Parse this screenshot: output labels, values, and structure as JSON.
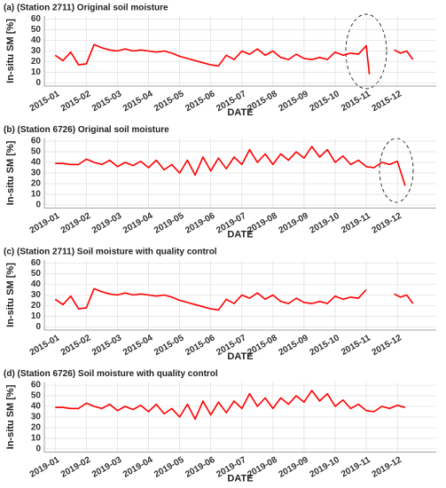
{
  "chart_data": [
    {
      "type": "line",
      "title": "(a) (Station 2711) Original soil moisture",
      "xlabel": "DATE",
      "ylabel": "In-situ SM [%]",
      "x": [
        0,
        0.25,
        0.5,
        0.75,
        1,
        1.25,
        1.5,
        1.75,
        2,
        2.25,
        2.5,
        2.75,
        3,
        3.25,
        3.5,
        3.75,
        4,
        4.25,
        4.5,
        4.75,
        5,
        5.25,
        5.5,
        5.75,
        6,
        6.25,
        6.5,
        6.75,
        7,
        7.25,
        7.5,
        7.75,
        8,
        8.25,
        8.5,
        8.75,
        9,
        9.25,
        9.5,
        9.75,
        10,
        10.1,
        10.5,
        10.9,
        11.1,
        11.3,
        11.5
      ],
      "color": "#ff0000",
      "values": [
        26,
        21,
        29,
        17,
        18,
        36,
        33,
        31,
        30,
        32,
        30,
        31,
        30,
        29,
        30,
        28,
        25,
        23,
        21,
        19,
        17,
        16,
        26,
        22,
        30,
        27,
        32,
        26,
        30,
        24,
        22,
        27,
        23,
        22,
        24,
        22,
        29,
        26,
        28,
        27,
        35,
        8,
        null,
        31,
        28,
        30,
        22
      ],
      "xlim": [
        -0.35,
        12.25
      ],
      "xticks": [
        {
          "value": 0,
          "label": "2015-01"
        },
        {
          "value": 1,
          "label": "2015-02"
        },
        {
          "value": 2,
          "label": "2015-03"
        },
        {
          "value": 3,
          "label": "2015-04"
        },
        {
          "value": 4,
          "label": "2015-05"
        },
        {
          "value": 5,
          "label": "2015-06"
        },
        {
          "value": 6,
          "label": "2015-07"
        },
        {
          "value": 7,
          "label": "2015-08"
        },
        {
          "value": 8,
          "label": "2015-09"
        },
        {
          "value": 9,
          "label": "2015-10"
        },
        {
          "value": 10,
          "label": "2015-11"
        },
        {
          "value": 11,
          "label": "2015-12"
        }
      ],
      "ylim": [
        -3,
        63
      ],
      "yticks": [
        0,
        10,
        20,
        30,
        40,
        50,
        60
      ],
      "grid": true
    },
    {
      "type": "line",
      "title": "(b) (Station 6726) Original soil moisture",
      "xlabel": "DATE",
      "ylabel": "In-situ SM [%]",
      "x": [
        0,
        0.25,
        0.5,
        0.75,
        1,
        1.25,
        1.5,
        1.75,
        2,
        2.25,
        2.5,
        2.75,
        3,
        3.25,
        3.5,
        3.75,
        4,
        4.25,
        4.5,
        4.75,
        5,
        5.25,
        5.5,
        5.75,
        6,
        6.25,
        6.5,
        6.75,
        7,
        7.25,
        7.5,
        7.75,
        8,
        8.25,
        8.5,
        8.75,
        9,
        9.25,
        9.5,
        9.75,
        10,
        10.25,
        10.5,
        10.75,
        11,
        11.25
      ],
      "color": "#ff0000",
      "values": [
        39,
        39,
        38,
        38,
        43,
        40,
        38,
        42,
        36,
        40,
        37,
        41,
        35,
        42,
        33,
        38,
        30,
        42,
        28,
        45,
        32,
        44,
        34,
        45,
        38,
        52,
        40,
        48,
        38,
        48,
        42,
        50,
        44,
        55,
        45,
        52,
        40,
        46,
        38,
        42,
        36,
        35,
        40,
        38,
        41,
        18
      ],
      "xlim": [
        -0.35,
        12.25
      ],
      "xticks": [
        {
          "value": 0,
          "label": "2019-01"
        },
        {
          "value": 1,
          "label": "2019-02"
        },
        {
          "value": 2,
          "label": "2019-03"
        },
        {
          "value": 3,
          "label": "2019-04"
        },
        {
          "value": 4,
          "label": "2019-05"
        },
        {
          "value": 5,
          "label": "2019-06"
        },
        {
          "value": 6,
          "label": "2019-07"
        },
        {
          "value": 7,
          "label": "2019-08"
        },
        {
          "value": 8,
          "label": "2019-09"
        },
        {
          "value": 9,
          "label": "2019-10"
        },
        {
          "value": 10,
          "label": "2019-11"
        },
        {
          "value": 11,
          "label": "2019-12"
        }
      ],
      "ylim": [
        -3,
        63
      ],
      "yticks": [
        0,
        10,
        20,
        30,
        40,
        50,
        60
      ],
      "grid": true
    },
    {
      "type": "line",
      "title": "(c) (Station 2711) Soil moisture with quality control",
      "xlabel": "DATE",
      "ylabel": "In-situ SM [%]",
      "x": [
        0,
        0.25,
        0.5,
        0.75,
        1,
        1.25,
        1.5,
        1.75,
        2,
        2.25,
        2.5,
        2.75,
        3,
        3.25,
        3.5,
        3.75,
        4,
        4.25,
        4.5,
        4.75,
        5,
        5.25,
        5.5,
        5.75,
        6,
        6.25,
        6.5,
        6.75,
        7,
        7.25,
        7.5,
        7.75,
        8,
        8.25,
        8.5,
        8.75,
        9,
        9.25,
        9.5,
        9.75,
        10,
        10.1,
        10.5,
        10.9,
        11.1,
        11.3,
        11.5
      ],
      "color": "#ff0000",
      "values": [
        26,
        21,
        29,
        17,
        18,
        36,
        33,
        31,
        30,
        32,
        30,
        31,
        30,
        29,
        30,
        28,
        25,
        23,
        21,
        19,
        17,
        16,
        26,
        22,
        30,
        27,
        32,
        26,
        30,
        24,
        22,
        27,
        23,
        22,
        24,
        22,
        29,
        26,
        28,
        27,
        35,
        null,
        null,
        31,
        28,
        30,
        22
      ],
      "xlim": [
        -0.35,
        12.25
      ],
      "xticks": [
        {
          "value": 0,
          "label": "2015-01"
        },
        {
          "value": 1,
          "label": "2015-02"
        },
        {
          "value": 2,
          "label": "2015-03"
        },
        {
          "value": 3,
          "label": "2015-04"
        },
        {
          "value": 4,
          "label": "2015-05"
        },
        {
          "value": 5,
          "label": "2015-06"
        },
        {
          "value": 6,
          "label": "2015-07"
        },
        {
          "value": 7,
          "label": "2015-08"
        },
        {
          "value": 8,
          "label": "2015-09"
        },
        {
          "value": 9,
          "label": "2015-10"
        },
        {
          "value": 10,
          "label": "2015-11"
        },
        {
          "value": 11,
          "label": "2015-12"
        }
      ],
      "ylim": [
        -3,
        63
      ],
      "yticks": [
        0,
        10,
        20,
        30,
        40,
        50,
        60
      ],
      "grid": true
    },
    {
      "type": "line",
      "title": "(d) (Station 6726) Soil moisture with quality control",
      "xlabel": "DATE",
      "ylabel": "In-situ SM [%]",
      "x": [
        0,
        0.25,
        0.5,
        0.75,
        1,
        1.25,
        1.5,
        1.75,
        2,
        2.25,
        2.5,
        2.75,
        3,
        3.25,
        3.5,
        3.75,
        4,
        4.25,
        4.5,
        4.75,
        5,
        5.25,
        5.5,
        5.75,
        6,
        6.25,
        6.5,
        6.75,
        7,
        7.25,
        7.5,
        7.75,
        8,
        8.25,
        8.5,
        8.75,
        9,
        9.25,
        9.5,
        9.75,
        10,
        10.25,
        10.5,
        10.75,
        11,
        11.25
      ],
      "color": "#ff0000",
      "values": [
        39,
        39,
        38,
        38,
        43,
        40,
        38,
        42,
        36,
        40,
        37,
        41,
        35,
        42,
        33,
        38,
        30,
        42,
        28,
        45,
        32,
        44,
        34,
        45,
        38,
        52,
        40,
        48,
        38,
        48,
        42,
        50,
        44,
        55,
        45,
        52,
        40,
        46,
        38,
        42,
        36,
        35,
        40,
        38,
        41,
        39
      ],
      "xlim": [
        -0.35,
        12.25
      ],
      "xticks": [
        {
          "value": 0,
          "label": "2019-01"
        },
        {
          "value": 1,
          "label": "2019-02"
        },
        {
          "value": 2,
          "label": "2019-03"
        },
        {
          "value": 3,
          "label": "2019-04"
        },
        {
          "value": 4,
          "label": "2019-05"
        },
        {
          "value": 5,
          "label": "2019-06"
        },
        {
          "value": 6,
          "label": "2019-07"
        },
        {
          "value": 7,
          "label": "2019-08"
        },
        {
          "value": 8,
          "label": "2019-09"
        },
        {
          "value": 9,
          "label": "2019-10"
        },
        {
          "value": 10,
          "label": "2019-11"
        },
        {
          "value": 11,
          "label": "2019-12"
        }
      ],
      "ylim": [
        -3,
        63
      ],
      "yticks": [
        0,
        10,
        20,
        30,
        40,
        50,
        60
      ],
      "grid": true
    }
  ]
}
